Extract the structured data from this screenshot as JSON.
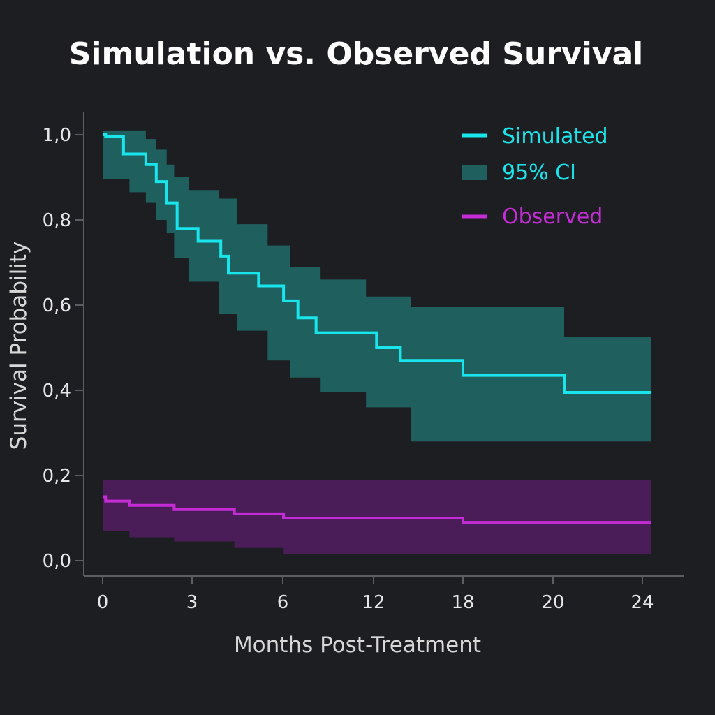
{
  "chart_data": {
    "type": "line",
    "title": "Simulation vs. Observed Survival",
    "xlabel": "Months Post-Treatment",
    "ylabel": "Survival Probability",
    "x_ticks": [
      "0",
      "3",
      "6",
      "12",
      "18",
      "20",
      "24"
    ],
    "y_ticks": [
      "0,0",
      "0,2",
      "0,4",
      "0,6",
      "0,8",
      "1,0"
    ],
    "ylim": [
      0,
      1.0
    ],
    "step_plot": true,
    "grid": false,
    "legend_position": "top-right",
    "series": [
      {
        "name": "Simulated",
        "color": "#19e6ec",
        "x": [
          0,
          0.1,
          0.7,
          1.45,
          1.8,
          2.15,
          2.5,
          3.2,
          3.95,
          4.2,
          5.2,
          6.05,
          7.0,
          8.2,
          12.2,
          13.8,
          18.0,
          20.5,
          24.4
        ],
        "y": [
          1.0,
          0.995,
          0.955,
          0.93,
          0.89,
          0.84,
          0.78,
          0.75,
          0.715,
          0.675,
          0.645,
          0.61,
          0.57,
          0.535,
          0.5,
          0.47,
          0.435,
          0.395,
          0.395
        ]
      },
      {
        "name": "95% CI",
        "color": "#1f5f5e",
        "x": [
          0,
          0.9,
          1.45,
          1.8,
          2.15,
          2.4,
          2.9,
          3.9,
          4.5,
          5.5,
          6.5,
          8.5,
          11.5,
          14.5,
          20.5,
          24.4
        ],
        "upper": [
          1.01,
          1.01,
          0.99,
          0.965,
          0.93,
          0.9,
          0.87,
          0.85,
          0.79,
          0.74,
          0.69,
          0.66,
          0.62,
          0.595,
          0.525,
          0.525
        ],
        "lower": [
          0.99,
          0.895,
          0.865,
          0.84,
          0.8,
          0.77,
          0.71,
          0.655,
          0.58,
          0.54,
          0.47,
          0.43,
          0.395,
          0.36,
          0.28,
          0.28
        ]
      },
      {
        "name": "Observed",
        "color": "#c52cd6",
        "x": [
          0,
          0.1,
          0.9,
          2.4,
          4.4,
          6.05,
          18.0,
          24.4
        ],
        "y": [
          0.15,
          0.14,
          0.13,
          0.12,
          0.11,
          0.1,
          0.09,
          0.09
        ]
      },
      {
        "name": "Observed CI",
        "color": "#4a1d59",
        "x": [
          0,
          0.9,
          2.4,
          4.4,
          6.05,
          18.0,
          24.4
        ],
        "upper": [
          0.19,
          0.19,
          0.19,
          0.19,
          0.19,
          0.19,
          0.19
        ],
        "lower": [
          0.085,
          0.07,
          0.055,
          0.045,
          0.03,
          0.015,
          0.015
        ]
      }
    ]
  }
}
